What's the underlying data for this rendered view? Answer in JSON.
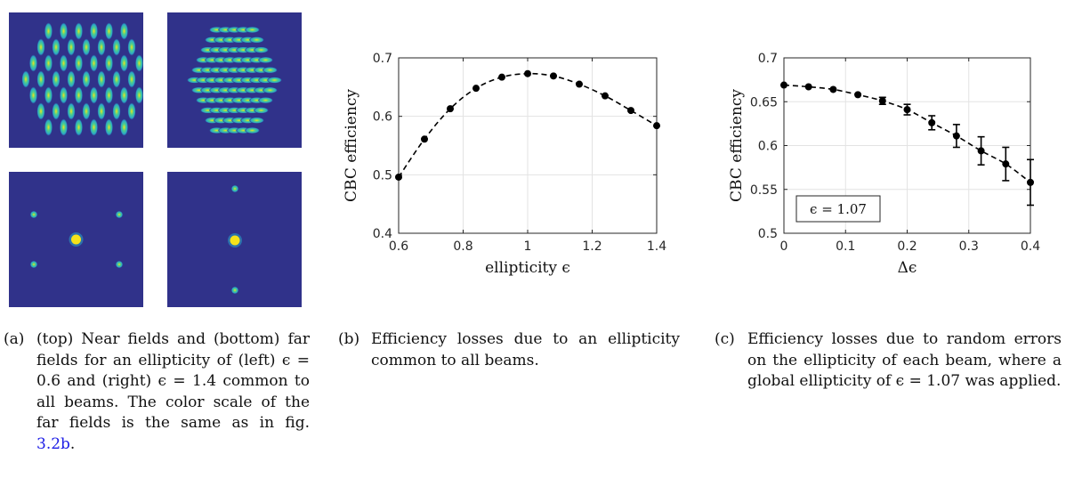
{
  "figure_a": {
    "images": [
      {
        "name": "near-field-left"
      },
      {
        "name": "near-field-right"
      },
      {
        "name": "far-field-left"
      },
      {
        "name": "far-field-right"
      }
    ],
    "colors": {
      "background": "#30328a",
      "beam_outer": "#2aa6c8",
      "beam_mid": "#4fd08a",
      "beam_core": "#f5e21a"
    }
  },
  "captions": {
    "a_label": "(a)",
    "a_text_pre": "(top) Near fields and (bottom) far fields for an ellipticity of (left) ϵ = 0.6 and (right) ϵ = 1.4 common to all beams. The color scale of the far fields is the same as in fig.",
    "a_ref": "3.2b",
    "a_text_post": ".",
    "b_label": "(b)",
    "b_text": "Efficiency losses due to an ellipticity common to all beams.",
    "c_label": "(c)",
    "c_text": "Efficiency losses due to random errors on the ellipticity of each beam, where a global ellipticity of ϵ = 1.07 was applied."
  },
  "chart_data": [
    {
      "type": "line",
      "xlabel": "ellipticity ϵ",
      "ylabel": "CBC efficiency",
      "xlim": [
        0.6,
        1.4
      ],
      "ylim": [
        0.4,
        0.7
      ],
      "xticks": [
        "0.6",
        "0.8",
        "1",
        "1.2",
        "1.4"
      ],
      "yticks": [
        "0.4",
        "0.5",
        "0.6",
        "0.7"
      ],
      "grid": true,
      "x": [
        0.6,
        0.68,
        0.76,
        0.84,
        0.92,
        1.0,
        1.08,
        1.16,
        1.24,
        1.32,
        1.4
      ],
      "y": [
        0.496,
        0.561,
        0.613,
        0.648,
        0.667,
        0.673,
        0.669,
        0.655,
        0.635,
        0.61,
        0.584
      ]
    },
    {
      "type": "line",
      "xlabel": "Δϵ",
      "ylabel": "CBC efficiency",
      "xlim": [
        0,
        0.4
      ],
      "ylim": [
        0.5,
        0.7
      ],
      "xticks": [
        "0",
        "0.1",
        "0.2",
        "0.3",
        "0.4"
      ],
      "yticks": [
        "0.5",
        "0.55",
        "0.6",
        "0.65",
        "0.7"
      ],
      "grid": true,
      "annotation": "ϵ = 1.07",
      "x": [
        0,
        0.04,
        0.08,
        0.12,
        0.16,
        0.2,
        0.24,
        0.28,
        0.32,
        0.36,
        0.4
      ],
      "y": [
        0.669,
        0.667,
        0.664,
        0.658,
        0.651,
        0.641,
        0.626,
        0.611,
        0.594,
        0.579,
        0.558
      ],
      "error": [
        0.001,
        0.001,
        0.002,
        0.002,
        0.004,
        0.006,
        0.008,
        0.013,
        0.016,
        0.019,
        0.026
      ]
    }
  ]
}
